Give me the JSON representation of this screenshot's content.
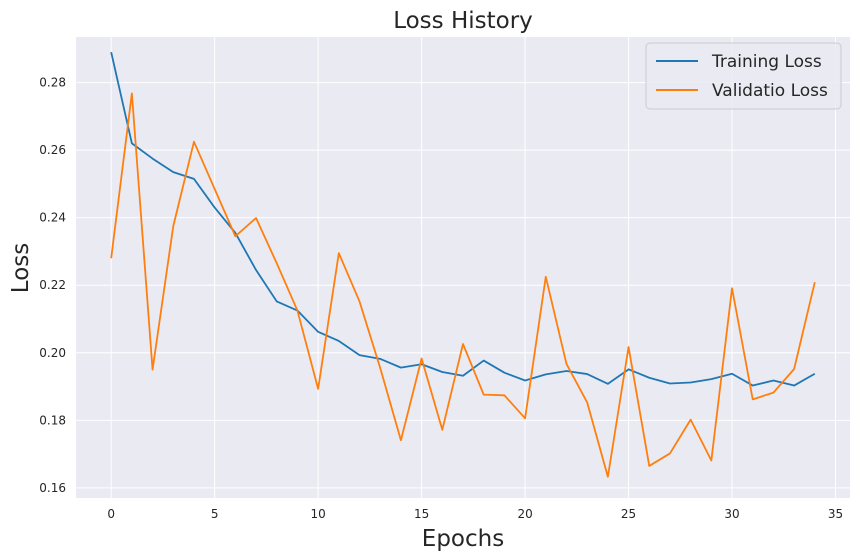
{
  "chart_data": {
    "type": "line",
    "title": "Loss History",
    "xlabel": "Epochs",
    "ylabel": "Loss",
    "xlim": [
      -1.7,
      35.7
    ],
    "ylim": [
      0.157,
      0.2935
    ],
    "xticks": [
      0,
      5,
      10,
      15,
      20,
      25,
      30,
      35
    ],
    "yticks": [
      0.16,
      0.18,
      0.2,
      0.22,
      0.24,
      0.26,
      0.28
    ],
    "grid": true,
    "legend_position": "top-right",
    "x": [
      0,
      1,
      2,
      3,
      4,
      5,
      6,
      7,
      8,
      9,
      10,
      11,
      12,
      13,
      14,
      15,
      16,
      17,
      18,
      19,
      20,
      21,
      22,
      23,
      24,
      25,
      26,
      27,
      28,
      29,
      30,
      31,
      32,
      33,
      34
    ],
    "series": [
      {
        "name": "Training Loss",
        "color": "#1f77b4",
        "values": [
          0.289,
          0.262,
          0.2575,
          0.2535,
          0.2515,
          0.243,
          0.2355,
          0.2245,
          0.2152,
          0.2125,
          0.2062,
          0.2035,
          0.1993,
          0.1982,
          0.1956,
          0.1966,
          0.1943,
          0.1932,
          0.1977,
          0.1941,
          0.1918,
          0.1936,
          0.1946,
          0.1937,
          0.1908,
          0.1951,
          0.1926,
          0.1909,
          0.1912,
          0.1922,
          0.1938,
          0.1903,
          0.1918,
          0.1903,
          0.1938
        ]
      },
      {
        "name": "Validatio Loss",
        "color": "#ff7f0e",
        "values": [
          0.228,
          0.2768,
          0.195,
          0.2375,
          0.2625,
          0.2485,
          0.2345,
          0.2399,
          0.2265,
          0.2125,
          0.1893,
          0.2295,
          0.2152,
          0.1955,
          0.1741,
          0.1983,
          0.1772,
          0.2026,
          0.1876,
          0.1874,
          0.1806,
          0.2225,
          0.1967,
          0.1853,
          0.1633,
          0.2017,
          0.1665,
          0.1702,
          0.1802,
          0.1681,
          0.2191,
          0.1862,
          0.1882,
          0.1952,
          0.2209
        ]
      }
    ]
  }
}
